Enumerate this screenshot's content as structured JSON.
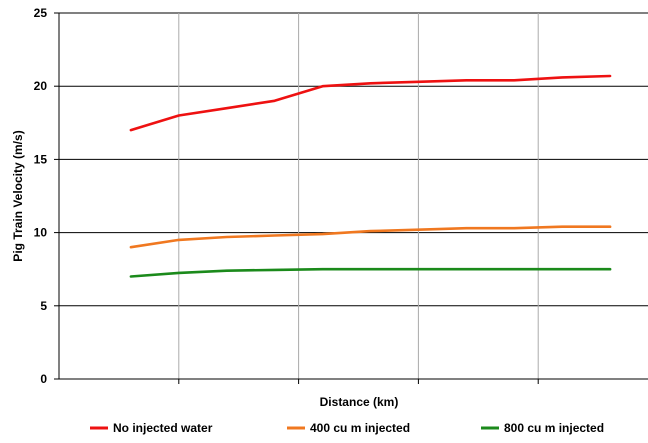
{
  "chart_data": {
    "type": "line",
    "title": "",
    "xlabel": "Distance (km)",
    "ylabel": "Pig Train Velocity (m/s)",
    "ylim": [
      0,
      25
    ],
    "yticks": [
      "0",
      "5",
      "10",
      "15",
      "20",
      "25"
    ],
    "xlim": [
      0,
      10
    ],
    "x_gridlines": [
      2,
      4,
      6,
      8
    ],
    "grid": true,
    "legend_position": "bottom",
    "series": [
      {
        "name": "No injected water",
        "color": "#ee1111",
        "x": [
          1.2,
          2.0,
          2.8,
          3.6,
          4.4,
          5.2,
          6.0,
          6.8,
          7.6,
          8.4,
          9.2
        ],
        "values": [
          17.0,
          18.0,
          18.5,
          19.0,
          20.0,
          20.2,
          20.3,
          20.4,
          20.4,
          20.6,
          20.7
        ]
      },
      {
        "name": "400 cu m injected",
        "color": "#f07820",
        "x": [
          1.2,
          2.0,
          2.8,
          3.6,
          4.4,
          5.2,
          6.0,
          6.8,
          7.6,
          8.4,
          9.2
        ],
        "values": [
          9.0,
          9.5,
          9.7,
          9.8,
          9.9,
          10.1,
          10.2,
          10.3,
          10.3,
          10.4,
          10.4
        ]
      },
      {
        "name": "800 cu m injected",
        "color": "#1b8a1b",
        "x": [
          1.2,
          2.0,
          2.8,
          3.6,
          4.4,
          5.2,
          6.0,
          6.8,
          7.6,
          8.4,
          9.2
        ],
        "values": [
          7.0,
          7.25,
          7.4,
          7.45,
          7.5,
          7.5,
          7.5,
          7.5,
          7.5,
          7.5,
          7.5
        ]
      }
    ]
  }
}
